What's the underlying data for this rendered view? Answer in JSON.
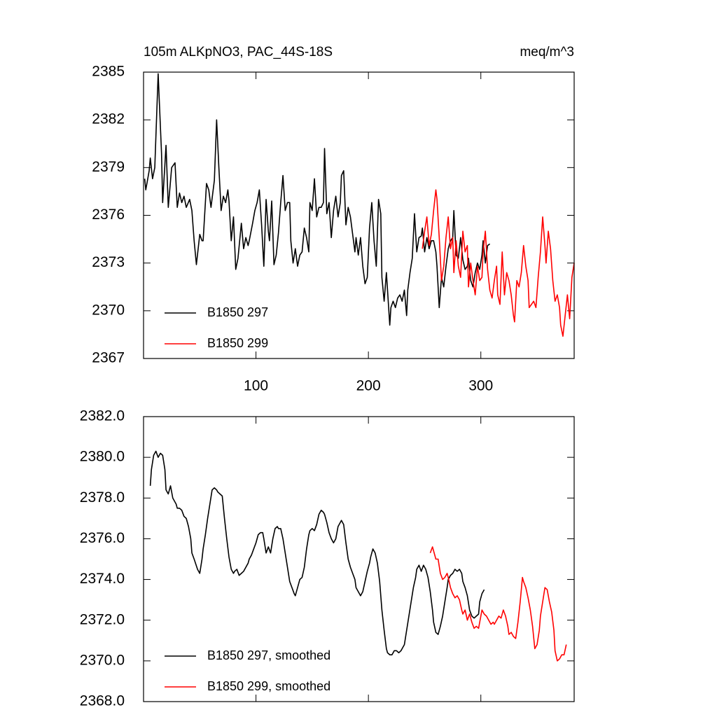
{
  "chart_data": [
    {
      "type": "line",
      "title": "105m ALKpNO3, PAC_44S-18S",
      "units": "meq/m^3",
      "xlim": [
        0,
        383
      ],
      "xticks": [
        100,
        200,
        300
      ],
      "xtick_labels": true,
      "ylim": [
        2367,
        2385
      ],
      "yticks": [
        2367,
        2370,
        2373,
        2376,
        2379,
        2382,
        2385
      ],
      "legend": "lower left",
      "series": [
        {
          "name": "B1850 297",
          "color": "#000000",
          "x": [
            1,
            2,
            5,
            6,
            8,
            10,
            13,
            16,
            17,
            20,
            22,
            25,
            28,
            30,
            32,
            34,
            36,
            38,
            41,
            43,
            45,
            47,
            50,
            52,
            53,
            56,
            58,
            60,
            63,
            65,
            67,
            69,
            71,
            73,
            75,
            76,
            78,
            80,
            82,
            84,
            87,
            89,
            91,
            93,
            94,
            97,
            99,
            101,
            103,
            105,
            107,
            109,
            111,
            112,
            114,
            116,
            118,
            120,
            122,
            124,
            126,
            128,
            130,
            131,
            133,
            135,
            137,
            139,
            141,
            143,
            145,
            147,
            148,
            150,
            152,
            154,
            156,
            158,
            160,
            161,
            163,
            165,
            167,
            169,
            171,
            173,
            175,
            176,
            178,
            180,
            182,
            184,
            186,
            188,
            189,
            191,
            193,
            195,
            197,
            199,
            201,
            203,
            205,
            207,
            209,
            211,
            212,
            214,
            216,
            219,
            220,
            222,
            224,
            226,
            228,
            230,
            232,
            234,
            235,
            237,
            239,
            241,
            243,
            245,
            247,
            248,
            250,
            252,
            254,
            256,
            258,
            260,
            261,
            263,
            265,
            267,
            269,
            271,
            273,
            275,
            276,
            278,
            280,
            282,
            284,
            286,
            288,
            289,
            291,
            293,
            295,
            297,
            299,
            301,
            302,
            304,
            306,
            308
          ],
          "values": [
            2378.3,
            2377.6,
            2378.8,
            2379.6,
            2378.3,
            2379.0,
            2384.9,
            2379.9,
            2376.8,
            2380.4,
            2376.5,
            2379.0,
            2379.3,
            2376.5,
            2377.4,
            2376.8,
            2377.2,
            2376.5,
            2377.0,
            2376.3,
            2374.4,
            2372.9,
            2374.8,
            2374.4,
            2374.4,
            2378.0,
            2377.6,
            2376.5,
            2378.2,
            2382.0,
            2379.0,
            2376.3,
            2377.2,
            2376.8,
            2377.6,
            2376.9,
            2374.4,
            2375.9,
            2372.6,
            2373.3,
            2375.5,
            2373.9,
            2374.6,
            2374.1,
            2374.4,
            2375.5,
            2376.3,
            2376.8,
            2377.6,
            2375.4,
            2372.8,
            2377.0,
            2375.0,
            2374.4,
            2376.9,
            2372.9,
            2373.5,
            2374.9,
            2376.8,
            2378.5,
            2376.3,
            2376.8,
            2376.8,
            2374.4,
            2373.0,
            2373.9,
            2372.8,
            2373.5,
            2373.7,
            2375.2,
            2374.6,
            2373.7,
            2376.8,
            2376.3,
            2378.3,
            2375.9,
            2376.5,
            2376.5,
            2376.8,
            2380.2,
            2376.1,
            2376.8,
            2374.6,
            2376.3,
            2377.2,
            2375.9,
            2376.8,
            2378.5,
            2378.8,
            2375.4,
            2376.5,
            2375.9,
            2374.8,
            2373.7,
            2374.6,
            2373.5,
            2374.6,
            2372.8,
            2371.7,
            2372.1,
            2375.2,
            2376.8,
            2374.4,
            2372.8,
            2377.0,
            2376.1,
            2372.1,
            2370.6,
            2372.4,
            2369.1,
            2370.2,
            2370.6,
            2370.2,
            2370.8,
            2371.0,
            2370.6,
            2371.3,
            2369.7,
            2371.3,
            2372.4,
            2373.3,
            2376.1,
            2373.7,
            2374.6,
            2374.7,
            2375.2,
            2373.7,
            2374.6,
            2373.9,
            2374.4,
            2374.4,
            2373.7,
            2372.8,
            2370.2,
            2372.1,
            2371.5,
            2372.8,
            2373.9,
            2374.4,
            2374.6,
            2376.3,
            2373.5,
            2373.3,
            2374.6,
            2373.2,
            2372.6,
            2372.8,
            2373.3,
            2371.9,
            2371.5,
            2372.4,
            2373.0,
            2372.6,
            2373.5,
            2374.4,
            2373.0,
            2374.1,
            2374.2
          ]
        },
        {
          "name": "B1850 299",
          "color": "#ff0000",
          "x": [
            248,
            250,
            252,
            254,
            256,
            258,
            260,
            261,
            263,
            265,
            267,
            269,
            271,
            273,
            275,
            276,
            278,
            280,
            282,
            284,
            286,
            288,
            289,
            291,
            293,
            295,
            297,
            299,
            301,
            302,
            304,
            306,
            308,
            310,
            312,
            314,
            315,
            317,
            319,
            321,
            323,
            325,
            327,
            329,
            330,
            332,
            334,
            336,
            338,
            340,
            342,
            343,
            345,
            347,
            349,
            351,
            353,
            355,
            357,
            358,
            360,
            362,
            364,
            366,
            368,
            370,
            371,
            373,
            375,
            377,
            379,
            381,
            383
          ],
          "values": [
            2373.9,
            2375.0,
            2375.9,
            2374.1,
            2374.8,
            2376.3,
            2377.6,
            2377.0,
            2374.6,
            2371.9,
            2372.8,
            2374.6,
            2375.9,
            2373.9,
            2374.6,
            2372.4,
            2374.4,
            2372.8,
            2372.1,
            2375.0,
            2373.7,
            2374.1,
            2371.5,
            2373.0,
            2371.9,
            2371.0,
            2372.8,
            2371.9,
            2372.1,
            2373.7,
            2375.0,
            2372.6,
            2371.3,
            2370.8,
            2371.9,
            2372.8,
            2371.0,
            2370.4,
            2373.7,
            2371.0,
            2372.4,
            2371.9,
            2371.0,
            2369.7,
            2369.3,
            2371.9,
            2371.5,
            2372.4,
            2374.1,
            2372.8,
            2371.9,
            2370.2,
            2370.4,
            2370.6,
            2370.2,
            2372.1,
            2373.7,
            2375.9,
            2374.1,
            2373.0,
            2375.0,
            2373.9,
            2371.9,
            2370.6,
            2371.0,
            2370.2,
            2369.1,
            2368.4,
            2369.7,
            2371.0,
            2369.5,
            2372.1,
            2373.0
          ]
        }
      ]
    },
    {
      "type": "line",
      "xlim": [
        0,
        383
      ],
      "xticks": [
        100,
        200,
        300
      ],
      "xtick_labels": false,
      "ylim": [
        2368,
        2382
      ],
      "yticks": [
        {
          "value": 2368,
          "label": "2368.0"
        },
        {
          "value": 2370,
          "label": "2370.0"
        },
        {
          "value": 2372,
          "label": "2372.0"
        },
        {
          "value": 2374,
          "label": "2374.0"
        },
        {
          "value": 2376,
          "label": "2376.0"
        },
        {
          "value": 2378,
          "label": "2378.0"
        },
        {
          "value": 2380,
          "label": "2380.0"
        },
        {
          "value": 2382,
          "label": "2382.0"
        }
      ],
      "legend": "lower left",
      "series": [
        {
          "name": "B1850 297, smoothed",
          "color": "#000000",
          "x": [
            6,
            7,
            9,
            11,
            13,
            15,
            17,
            19,
            20,
            22,
            24,
            26,
            29,
            30,
            32,
            34,
            36,
            38,
            40,
            42,
            43,
            45,
            48,
            50,
            52,
            53,
            55,
            57,
            59,
            61,
            63,
            65,
            66,
            68,
            70,
            72,
            74,
            76,
            78,
            80,
            81,
            83,
            85,
            87,
            89,
            91,
            93,
            94,
            96,
            98,
            100,
            102,
            104,
            106,
            107,
            109,
            111,
            113,
            115,
            117,
            119,
            120,
            122,
            124,
            126,
            128,
            130,
            132,
            134,
            135,
            137,
            139,
            141,
            143,
            145,
            147,
            148,
            150,
            152,
            154,
            156,
            158,
            160,
            161,
            163,
            165,
            167,
            169,
            171,
            173,
            175,
            176,
            178,
            180,
            182,
            184,
            186,
            188,
            189,
            191,
            193,
            195,
            197,
            199,
            201,
            202,
            204,
            206,
            208,
            210,
            212,
            214,
            216,
            217,
            219,
            221,
            223,
            225,
            227,
            229,
            230,
            232,
            234,
            236,
            238,
            240,
            242,
            243,
            245,
            247,
            249,
            251,
            253,
            255,
            257,
            258,
            260,
            262,
            264,
            266,
            268,
            270,
            271,
            273,
            275,
            277,
            279,
            281,
            283,
            284,
            286,
            288,
            290,
            292,
            294,
            296,
            298,
            299,
            301,
            303
          ],
          "values": [
            2378.6,
            2379.4,
            2380.1,
            2380.3,
            2380.0,
            2380.2,
            2380.1,
            2379.4,
            2378.4,
            2378.2,
            2378.6,
            2378.0,
            2377.7,
            2377.5,
            2377.5,
            2377.4,
            2377.1,
            2377.0,
            2376.6,
            2376.0,
            2375.3,
            2375.0,
            2374.5,
            2374.3,
            2375.0,
            2375.5,
            2376.2,
            2377.0,
            2377.7,
            2378.4,
            2378.5,
            2378.4,
            2378.3,
            2378.2,
            2378.1,
            2377.0,
            2376.0,
            2375.1,
            2374.5,
            2374.3,
            2374.4,
            2374.5,
            2374.2,
            2374.3,
            2374.4,
            2374.6,
            2374.8,
            2375.0,
            2375.2,
            2375.5,
            2375.8,
            2376.2,
            2376.3,
            2376.3,
            2376.0,
            2375.3,
            2375.6,
            2375.3,
            2376.0,
            2376.5,
            2376.6,
            2376.5,
            2376.5,
            2376.0,
            2375.3,
            2374.6,
            2373.9,
            2373.6,
            2373.3,
            2373.2,
            2373.6,
            2374.0,
            2374.1,
            2374.6,
            2375.5,
            2376.2,
            2376.4,
            2376.5,
            2376.4,
            2376.7,
            2377.2,
            2377.4,
            2377.3,
            2377.2,
            2376.8,
            2376.3,
            2376.0,
            2375.8,
            2376.0,
            2376.6,
            2376.8,
            2376.9,
            2376.7,
            2375.8,
            2375.0,
            2374.6,
            2374.3,
            2374.0,
            2373.6,
            2373.4,
            2373.2,
            2373.4,
            2373.9,
            2374.4,
            2374.8,
            2375.1,
            2375.5,
            2375.3,
            2374.8,
            2373.9,
            2372.5,
            2371.5,
            2370.6,
            2370.4,
            2370.3,
            2370.3,
            2370.5,
            2370.5,
            2370.4,
            2370.5,
            2370.6,
            2370.8,
            2371.5,
            2372.2,
            2372.9,
            2373.6,
            2374.1,
            2374.5,
            2374.7,
            2374.4,
            2374.7,
            2374.5,
            2374.1,
            2373.4,
            2372.5,
            2371.9,
            2371.4,
            2371.3,
            2371.7,
            2372.2,
            2372.9,
            2373.6,
            2374.0,
            2374.2,
            2374.3,
            2374.5,
            2374.4,
            2374.5,
            2374.3,
            2373.9,
            2373.6,
            2373.2,
            2372.5,
            2372.2,
            2372.1,
            2372.2,
            2372.3,
            2372.9,
            2373.3,
            2373.5
          ]
        },
        {
          "name": "B1850 299, smoothed",
          "color": "#ff0000",
          "x": [
            255,
            257,
            258,
            260,
            262,
            264,
            266,
            268,
            270,
            271,
            273,
            275,
            277,
            279,
            281,
            283,
            284,
            286,
            288,
            290,
            292,
            294,
            296,
            298,
            299,
            301,
            303,
            305,
            307,
            309,
            311,
            312,
            314,
            316,
            318,
            320,
            322,
            324,
            325,
            327,
            329,
            331,
            333,
            335,
            337,
            338,
            340,
            342,
            344,
            346,
            348,
            350,
            352,
            353,
            355,
            357,
            359,
            361,
            363,
            365,
            366,
            368,
            370,
            372,
            374,
            376
          ],
          "values": [
            2375.3,
            2375.6,
            2375.4,
            2375.0,
            2375.0,
            2374.3,
            2374.0,
            2374.1,
            2374.3,
            2374.1,
            2373.6,
            2373.3,
            2373.1,
            2373.2,
            2373.0,
            2372.5,
            2372.3,
            2372.5,
            2372.0,
            2372.3,
            2371.9,
            2371.6,
            2371.7,
            2371.6,
            2371.9,
            2372.5,
            2372.3,
            2372.2,
            2372.0,
            2371.8,
            2371.9,
            2371.8,
            2372.0,
            2372.2,
            2372.1,
            2372.5,
            2372.2,
            2371.7,
            2371.3,
            2371.4,
            2371.2,
            2371.1,
            2371.9,
            2372.9,
            2374.1,
            2373.9,
            2373.6,
            2373.1,
            2372.5,
            2371.7,
            2370.6,
            2370.8,
            2371.5,
            2372.2,
            2372.9,
            2373.6,
            2373.5,
            2372.9,
            2372.4,
            2371.5,
            2370.5,
            2370.0,
            2370.1,
            2370.3,
            2370.3,
            2370.8
          ]
        }
      ]
    }
  ]
}
